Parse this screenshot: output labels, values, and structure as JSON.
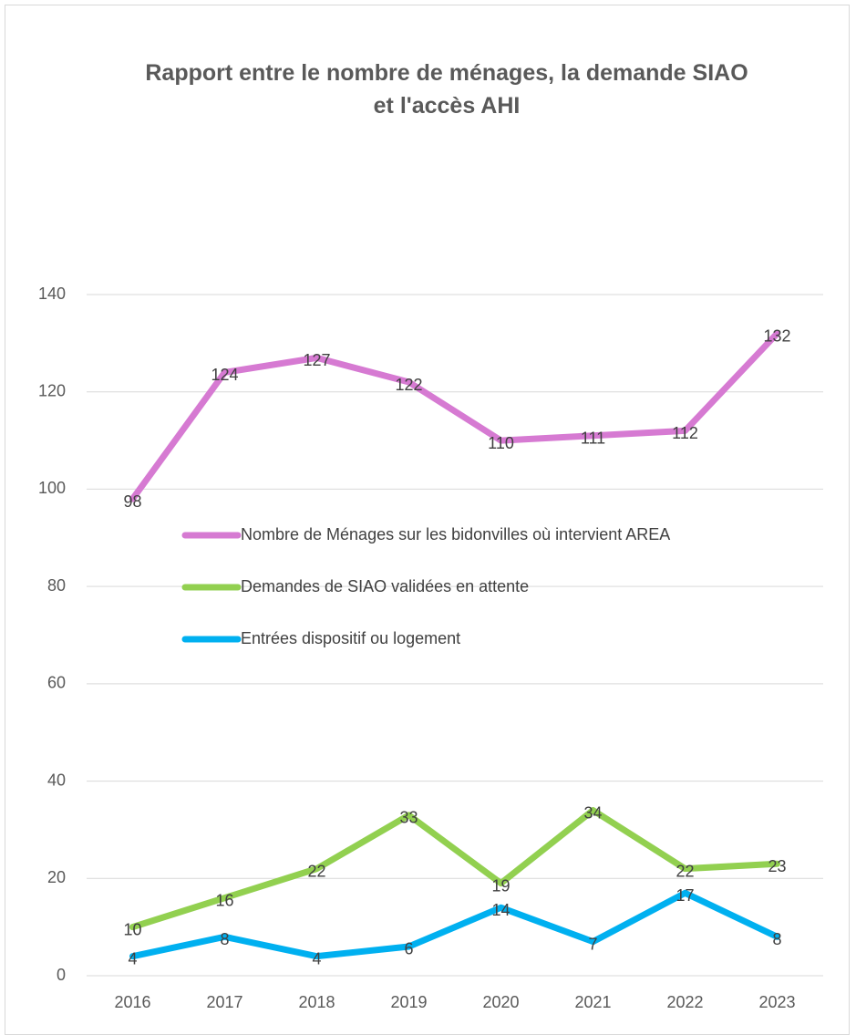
{
  "chart_data": {
    "type": "line",
    "title": "Rapport entre le nombre de ménages, la demande SIAO et l'accès AHI",
    "categories": [
      "2016",
      "2017",
      "2018",
      "2019",
      "2020",
      "2021",
      "2022",
      "2023"
    ],
    "series": [
      {
        "name": "Nombre de Ménages sur les bidonvilles où intervient AREA",
        "color": "#d67ad2",
        "values": [
          98,
          124,
          127,
          122,
          110,
          111,
          112,
          132
        ]
      },
      {
        "name": "Demandes de SIAO validées en attente",
        "color": "#92d050",
        "values": [
          10,
          16,
          22,
          33,
          19,
          34,
          22,
          23
        ]
      },
      {
        "name": "Entrées dispositif ou logement",
        "color": "#00b0f0",
        "values": [
          4,
          8,
          4,
          6,
          14,
          7,
          17,
          8
        ]
      }
    ],
    "ylim": [
      0,
      140
    ],
    "yticks": [
      0,
      20,
      40,
      60,
      80,
      100,
      120,
      140
    ],
    "grid": true,
    "legend": "center-left",
    "data_labels": true
  }
}
